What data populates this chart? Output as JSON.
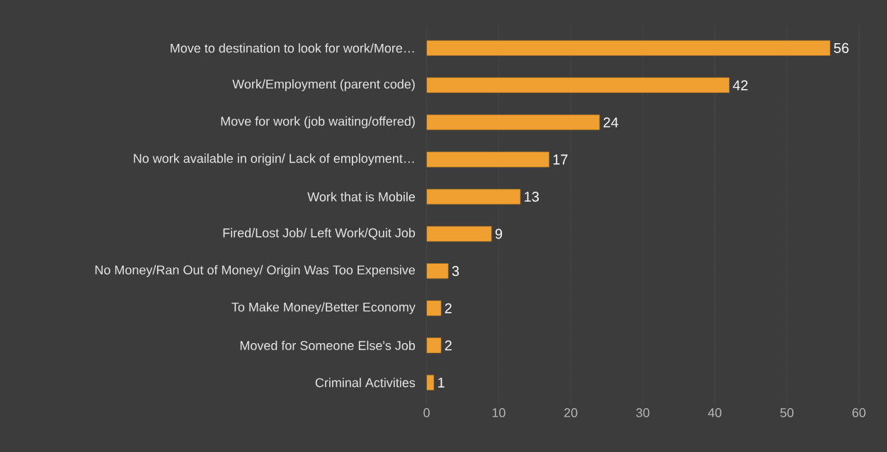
{
  "chart_data": {
    "type": "bar",
    "orientation": "horizontal",
    "categories": [
      "Move to destination to look for work/More…",
      "Work/Employment (parent code)",
      "Move for work (job waiting/offered)",
      "No work available in origin/ Lack of employment…",
      "Work that is Mobile",
      "Fired/Lost Job/ Left Work/Quit Job",
      "No Money/Ran Out of Money/ Origin Was Too Expensive",
      "To Make Money/Better Economy",
      "Moved for Someone Else's Job",
      "Criminal Activities"
    ],
    "values": [
      56,
      42,
      24,
      17,
      13,
      9,
      3,
      2,
      2,
      1
    ],
    "color": "#f0a030",
    "xlim": [
      0,
      60
    ],
    "xticks": [
      0,
      10,
      20,
      30,
      40,
      50,
      60
    ],
    "grid": "x",
    "data_labels": true
  }
}
